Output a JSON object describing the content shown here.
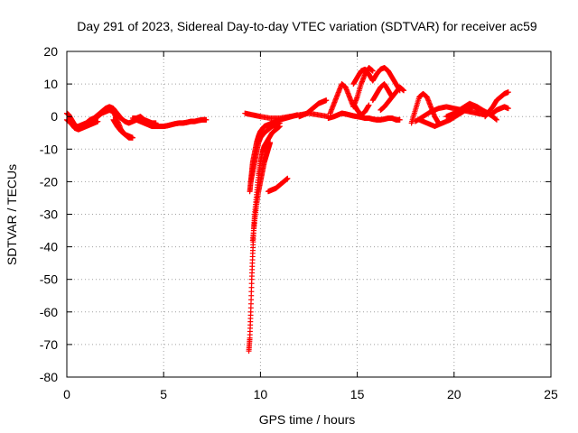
{
  "chart_data": {
    "type": "scatter",
    "title": "Day 291 of 2023, Sidereal Day-to-day VTEC variation (SDTVAR) for receiver ac59",
    "xlabel": "GPS time / hours",
    "ylabel": "SDTVAR / TECUs",
    "xlim": [
      0,
      25
    ],
    "ylim": [
      -80,
      20
    ],
    "xticks": [
      0,
      5,
      10,
      15,
      20,
      25
    ],
    "yticks": [
      -80,
      -70,
      -60,
      -50,
      -40,
      -30,
      -20,
      -10,
      0,
      10,
      20
    ],
    "grid": true,
    "marker": "+",
    "color": "#ff0000",
    "series": [
      {
        "name": "SDTVAR",
        "segments": [
          {
            "x": [
              0.0,
              0.1,
              0.2,
              0.3,
              0.4,
              0.5,
              0.6,
              0.8,
              1.0,
              1.2,
              1.4,
              1.6,
              1.8,
              2.0,
              2.2,
              2.4,
              2.6,
              2.8,
              3.0,
              3.2,
              3.4,
              3.6,
              3.8,
              4.0,
              4.2,
              4.4,
              4.6,
              4.8,
              5.0,
              5.2,
              5.4,
              5.6,
              5.8,
              6.0,
              6.2,
              6.4,
              6.6,
              6.8,
              7.0,
              7.2
            ],
            "y": [
              1.0,
              0.5,
              -0.5,
              -1.5,
              -2.5,
              -3.0,
              -3.0,
              -2.5,
              -2.0,
              -1.0,
              -0.5,
              0.5,
              1.5,
              2.5,
              3.0,
              2.5,
              1.0,
              -0.5,
              -1.5,
              -2.0,
              -1.5,
              -1.0,
              -1.5,
              -2.0,
              -2.5,
              -3.0,
              -3.0,
              -3.0,
              -3.0,
              -2.8,
              -2.5,
              -2.2,
              -2.0,
              -2.0,
              -1.8,
              -1.5,
              -1.5,
              -1.2,
              -1.0,
              -1.0
            ]
          },
          {
            "x": [
              0.0,
              0.2,
              0.4,
              0.6,
              0.8,
              1.0,
              1.2,
              1.4,
              1.6
            ],
            "y": [
              -1.0,
              -2.0,
              -3.5,
              -4.0,
              -3.5,
              -3.0,
              -2.5,
              -2.0,
              -1.5
            ]
          },
          {
            "x": [
              1.4,
              1.6,
              1.8,
              2.0,
              2.2,
              2.4,
              2.6,
              2.8,
              3.0,
              3.2,
              3.4
            ],
            "y": [
              -1.0,
              0.0,
              1.0,
              1.5,
              2.0,
              1.5,
              -1.0,
              -4.0,
              -5.5,
              -6.5,
              -6.5
            ]
          },
          {
            "x": [
              2.4,
              2.6,
              2.8,
              3.0,
              3.2,
              3.4
            ],
            "y": [
              -1.0,
              -3.0,
              -4.5,
              -5.5,
              -6.0,
              -6.5
            ]
          },
          {
            "x": [
              3.4,
              3.6,
              3.8,
              4.0,
              4.2,
              4.4,
              4.6
            ],
            "y": [
              -0.5,
              -0.5,
              0.0,
              -1.0,
              -1.5,
              -2.0,
              -2.0
            ]
          },
          {
            "x": [
              9.4,
              9.45,
              9.5,
              9.55,
              9.6,
              9.65,
              9.7,
              9.8,
              9.9,
              10.0,
              10.1,
              10.2,
              10.4,
              10.6,
              10.8,
              11.0
            ],
            "y": [
              -72,
              -68,
              -60,
              -50,
              -42,
              -35,
              -30,
              -24,
              -18,
              -14,
              -11,
              -9,
              -7,
              -5,
              -4,
              -3
            ]
          },
          {
            "x": [
              9.45,
              9.5,
              9.55,
              9.6,
              9.7,
              9.8,
              9.9,
              10.0,
              10.2,
              10.4,
              10.6,
              10.8,
              11.0,
              11.3,
              11.6,
              11.9
            ],
            "y": [
              -23,
              -20,
              -17,
              -14,
              -11,
              -8,
              -6,
              -4.5,
              -3,
              -2.5,
              -2.0,
              -1.5,
              -1.0,
              -0.5,
              0.0,
              0.5
            ]
          },
          {
            "x": [
              9.5,
              9.6,
              9.7,
              9.8,
              9.9,
              10.0,
              10.2,
              10.4,
              10.6,
              10.8,
              11.0
            ],
            "y": [
              -20,
              -17,
              -14,
              -11,
              -8,
              -6.5,
              -5.0,
              -4.0,
              -3.0,
              -2.5,
              -2.0
            ]
          },
          {
            "x": [
              9.6,
              9.7,
              9.8,
              9.9,
              10.0,
              10.1,
              10.2,
              10.3,
              10.4,
              10.5
            ],
            "y": [
              -38,
              -32,
              -27,
              -23,
              -20,
              -17,
              -14,
              -12,
              -10,
              -8
            ]
          },
          {
            "x": [
              10.4,
              10.6,
              10.8,
              11.0,
              11.2,
              11.4
            ],
            "y": [
              -23,
              -22.5,
              -22,
              -21,
              -20,
              -19
            ]
          },
          {
            "x": [
              9.2,
              9.6,
              10.0,
              10.5,
              11.0,
              11.5,
              12.0,
              12.5,
              13.0,
              13.5
            ],
            "y": [
              1.0,
              0.5,
              0.0,
              -0.5,
              -0.5,
              0.0,
              0.5,
              1.0,
              0.5,
              0.0
            ]
          },
          {
            "x": [
              12.0,
              12.2,
              12.4,
              12.6,
              12.8,
              13.0,
              13.2,
              13.4
            ],
            "y": [
              0.0,
              0.5,
              1.0,
              2.0,
              3.0,
              4.0,
              4.5,
              5.0
            ]
          },
          {
            "x": [
              13.5,
              13.8,
              14.0,
              14.2,
              14.4,
              14.6,
              14.8,
              15.0,
              15.2,
              15.4,
              15.6,
              15.8,
              16.0,
              16.2,
              16.4,
              16.6,
              16.8,
              17.0,
              17.2
            ],
            "y": [
              -0.5,
              0.0,
              0.5,
              1.0,
              0.8,
              0.5,
              0.2,
              0.0,
              -0.2,
              -0.5,
              -0.5,
              -0.8,
              -1.0,
              -1.0,
              -0.8,
              -0.5,
              -0.5,
              -1.0,
              -1.0
            ]
          },
          {
            "x": [
              13.6,
              13.8,
              14.0,
              14.2,
              14.4,
              14.6,
              14.8,
              15.0,
              15.2,
              15.4,
              15.6,
              15.8
            ],
            "y": [
              1.0,
              4.0,
              7.0,
              10.0,
              9.0,
              6.0,
              3.0,
              6.0,
              10.0,
              13.0,
              15.0,
              14.0
            ]
          },
          {
            "x": [
              14.8,
              15.0,
              15.2,
              15.4,
              15.6,
              15.8,
              16.0,
              16.2,
              16.4,
              16.6,
              16.8,
              17.0,
              17.2
            ],
            "y": [
              10.0,
              12.0,
              14.0,
              14.5,
              13.0,
              11.0,
              13.0,
              14.5,
              15.0,
              14.0,
              12.0,
              10.0,
              8.0
            ]
          },
          {
            "x": [
              15.8,
              16.0,
              16.2,
              16.4,
              16.6,
              16.8
            ],
            "y": [
              5.0,
              7.0,
              9.0,
              10.0,
              8.0,
              6.0
            ]
          },
          {
            "x": [
              14.8,
              15.0,
              15.2,
              15.4,
              15.6
            ],
            "y": [
              4.0,
              2.0,
              0.5,
              1.5,
              3.5
            ]
          },
          {
            "x": [
              16.2,
              16.4,
              16.6,
              16.8,
              17.0,
              17.2,
              17.4
            ],
            "y": [
              2.0,
              3.0,
              4.5,
              6.0,
              7.5,
              9.0,
              8.0
            ]
          },
          {
            "x": [
              17.8,
              18.0,
              18.2,
              18.4,
              18.6,
              18.8,
              19.0,
              19.2
            ],
            "y": [
              -2.0,
              2.0,
              6.0,
              7.0,
              6.0,
              3.0,
              0.0,
              -2.0
            ]
          },
          {
            "x": [
              18.0,
              18.4,
              18.8,
              19.2,
              19.6,
              20.0,
              20.4,
              20.8,
              21.2,
              21.6
            ],
            "y": [
              -1.5,
              0.0,
              1.5,
              2.5,
              3.0,
              2.5,
              2.0,
              1.5,
              1.0,
              0.5
            ]
          },
          {
            "x": [
              18.2,
              18.6,
              19.0,
              19.4,
              19.8,
              20.2,
              20.6,
              21.0,
              21.4,
              21.8,
              22.2
            ],
            "y": [
              -1.0,
              -2.0,
              -3.0,
              -2.0,
              -1.0,
              0.5,
              2.0,
              3.0,
              2.0,
              1.0,
              -1.0
            ]
          },
          {
            "x": [
              19.6,
              20.0,
              20.4,
              20.8,
              21.2,
              21.6,
              22.0
            ],
            "y": [
              0.0,
              1.0,
              2.5,
              4.0,
              3.0,
              1.5,
              0.0
            ]
          },
          {
            "x": [
              21.6,
              21.8,
              22.0,
              22.2,
              22.4,
              22.6,
              22.8
            ],
            "y": [
              0.0,
              1.5,
              3.0,
              5.0,
              6.0,
              7.0,
              7.5
            ]
          },
          {
            "x": [
              22.0,
              22.2,
              22.4,
              22.6,
              22.8
            ],
            "y": [
              1.0,
              2.0,
              2.5,
              3.0,
              2.5
            ]
          }
        ]
      }
    ]
  }
}
